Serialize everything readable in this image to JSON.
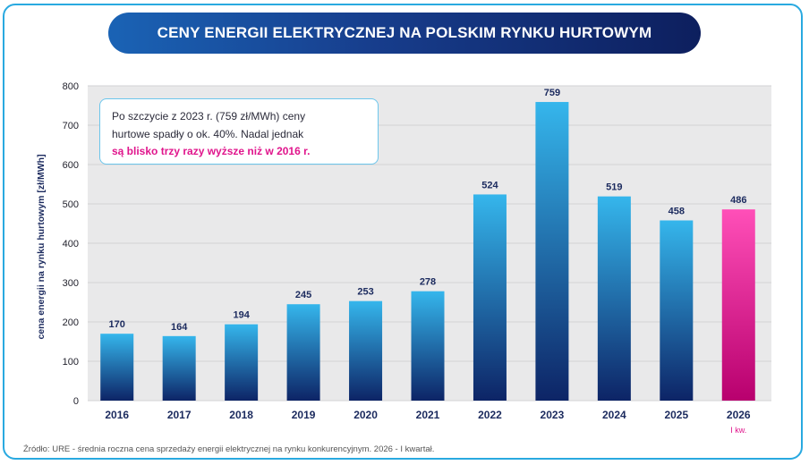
{
  "title": "CENY ENERGII ELEKTRYCZNEJ NA POLSKIM RYNKU HURTOWYM",
  "note": {
    "line1": "Po szczycie z 2023 r. (759 zł/MWh) ceny",
    "line2": "hurtowe spadły o ok. 40%. Nadal jednak",
    "highlight": "są blisko trzy razy wyższe niż w 2016 r."
  },
  "source": "Źródło: URE - średnia roczna cena sprzedaży energii elektrycznej na rynku konkurencyjnym. 2026 - I kwartał.",
  "chart_data": {
    "type": "bar",
    "categories": [
      "2016",
      "2017",
      "2018",
      "2019",
      "2020",
      "2021",
      "2022",
      "2023",
      "2024",
      "2025",
      "2026"
    ],
    "values": [
      170,
      164,
      194,
      245,
      253,
      278,
      524,
      759,
      519,
      458,
      486
    ],
    "category_sublabels": {
      "2026": "I kw."
    },
    "highlighted_category": "2026",
    "ylabel": "cena energii na rynku hurtowym [zł/MWh]",
    "xlabel": "",
    "ylim": [
      0,
      800
    ],
    "yticks": [
      0,
      100,
      200,
      300,
      400,
      500,
      600,
      700,
      800
    ],
    "grid": true,
    "colors": {
      "bar_top": "#35b6ec",
      "bar_bottom": "#0d2466",
      "highlight_top": "#ff4fb8",
      "highlight_bottom": "#b8006e",
      "plot_background": "#e9e9ea",
      "value_label": "#1b2a5e",
      "sublabel": "#e0158c"
    }
  }
}
